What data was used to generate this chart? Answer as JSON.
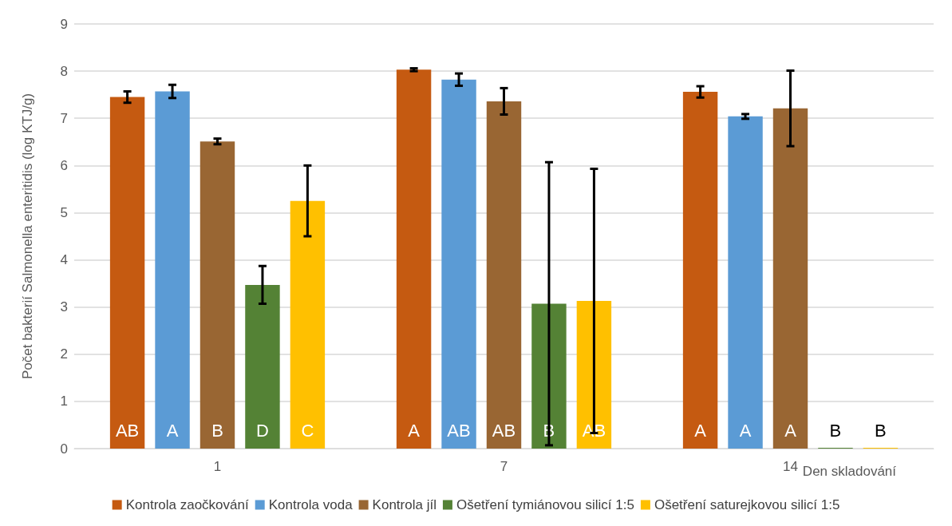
{
  "chart_data": {
    "type": "bar",
    "ylabel": "Počet bakterií Salmonella enteritidis (log KTJ/g)",
    "xlabel": "Den skladování",
    "categories": [
      "1",
      "7",
      "14"
    ],
    "series": [
      {
        "name": "Kontrola zaočkování",
        "color": "#c55a11",
        "values": [
          7.45,
          8.03,
          7.56
        ],
        "errors": [
          0.12,
          0.03,
          0.12
        ],
        "value_labels": [
          "AB",
          "A",
          "A"
        ]
      },
      {
        "name": "Kontrola voda",
        "color": "#5b9bd5",
        "values": [
          7.57,
          7.82,
          7.04
        ],
        "errors": [
          0.14,
          0.13,
          0.05
        ],
        "value_labels": [
          "A",
          "AB",
          "A"
        ]
      },
      {
        "name": "Kontrola jíl",
        "color": "#996633",
        "values": [
          6.51,
          7.36,
          7.21
        ],
        "errors": [
          0.06,
          0.28,
          0.8
        ],
        "value_labels": [
          "B",
          "AB",
          "A"
        ]
      },
      {
        "name": "Ošetření tymiánovou silicí 1:5",
        "color": "#548235",
        "values": [
          3.47,
          3.07,
          0
        ],
        "errors": [
          0.4,
          3.0,
          null
        ],
        "value_labels": [
          "D",
          "B",
          "B"
        ]
      },
      {
        "name": "Ošetření saturejkovou silicí 1:5",
        "color": "#ffc000",
        "values": [
          5.25,
          3.13,
          0
        ],
        "errors": [
          0.75,
          2.8,
          null
        ],
        "value_labels": [
          "C",
          "AB",
          "B"
        ]
      }
    ],
    "ylim": [
      0,
      9
    ],
    "yticks": [
      0,
      1,
      2,
      3,
      4,
      5,
      6,
      7,
      8,
      9
    ],
    "grid": "y",
    "legend": "bottom"
  }
}
